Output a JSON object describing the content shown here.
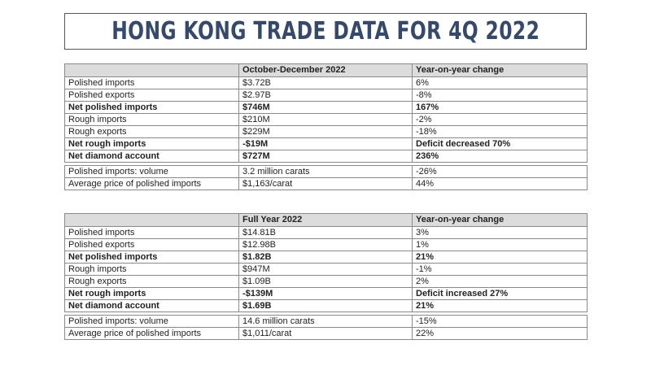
{
  "title": "HONG KONG TRADE DATA FOR 4Q 2022",
  "tables": [
    {
      "headers": [
        "",
        "October-December 2022",
        "Year-on-year change"
      ],
      "main_rows": [
        {
          "label": "Polished imports",
          "value": "$3.72B",
          "change": "6%",
          "bold": false
        },
        {
          "label": "Polished exports",
          "value": "$2.97B",
          "change": "-8%",
          "bold": false
        },
        {
          "label": "Net polished imports",
          "value": "$746M",
          "change": "167%",
          "bold": true
        },
        {
          "label": "Rough imports",
          "value": "$210M",
          "change": "-2%",
          "bold": false
        },
        {
          "label": "Rough exports",
          "value": "$229M",
          "change": "-18%",
          "bold": false
        },
        {
          "label": "Net rough imports",
          "value": "-$19M",
          "change": "Deficit decreased 70%",
          "bold": true
        },
        {
          "label": "Net diamond account",
          "value": "$727M",
          "change": "236%",
          "bold": true
        }
      ],
      "extra_rows": [
        {
          "label": "Polished imports: volume",
          "value": "3.2 million carats",
          "change": "-26%",
          "bold": false
        },
        {
          "label": "Average price of polished imports",
          "value": "$1,163/carat",
          "change": "44%",
          "bold": false
        }
      ]
    },
    {
      "headers": [
        "",
        "Full Year 2022",
        "Year-on-year change"
      ],
      "main_rows": [
        {
          "label": "Polished imports",
          "value": "$14.81B",
          "change": "3%",
          "bold": false
        },
        {
          "label": "Polished exports",
          "value": "$12.98B",
          "change": "1%",
          "bold": false
        },
        {
          "label": "Net polished imports",
          "value": "$1.82B",
          "change": "21%",
          "bold": true
        },
        {
          "label": "Rough imports",
          "value": "$947M",
          "change": "-1%",
          "bold": false
        },
        {
          "label": "Rough exports",
          "value": "$1.09B",
          "change": "2%",
          "bold": false
        },
        {
          "label": "Net rough imports",
          "value": "-$139M",
          "change": "Deficit increased 27%",
          "bold": true
        },
        {
          "label": "Net diamond account",
          "value": "$1.69B",
          "change": "21%",
          "bold": true
        }
      ],
      "extra_rows": [
        {
          "label": "Polished imports: volume",
          "value": "14.6 million carats",
          "change": "-15%",
          "bold": false
        },
        {
          "label": "Average price of polished imports",
          "value": "$1,011/carat",
          "change": "22%",
          "bold": false
        }
      ]
    }
  ]
}
